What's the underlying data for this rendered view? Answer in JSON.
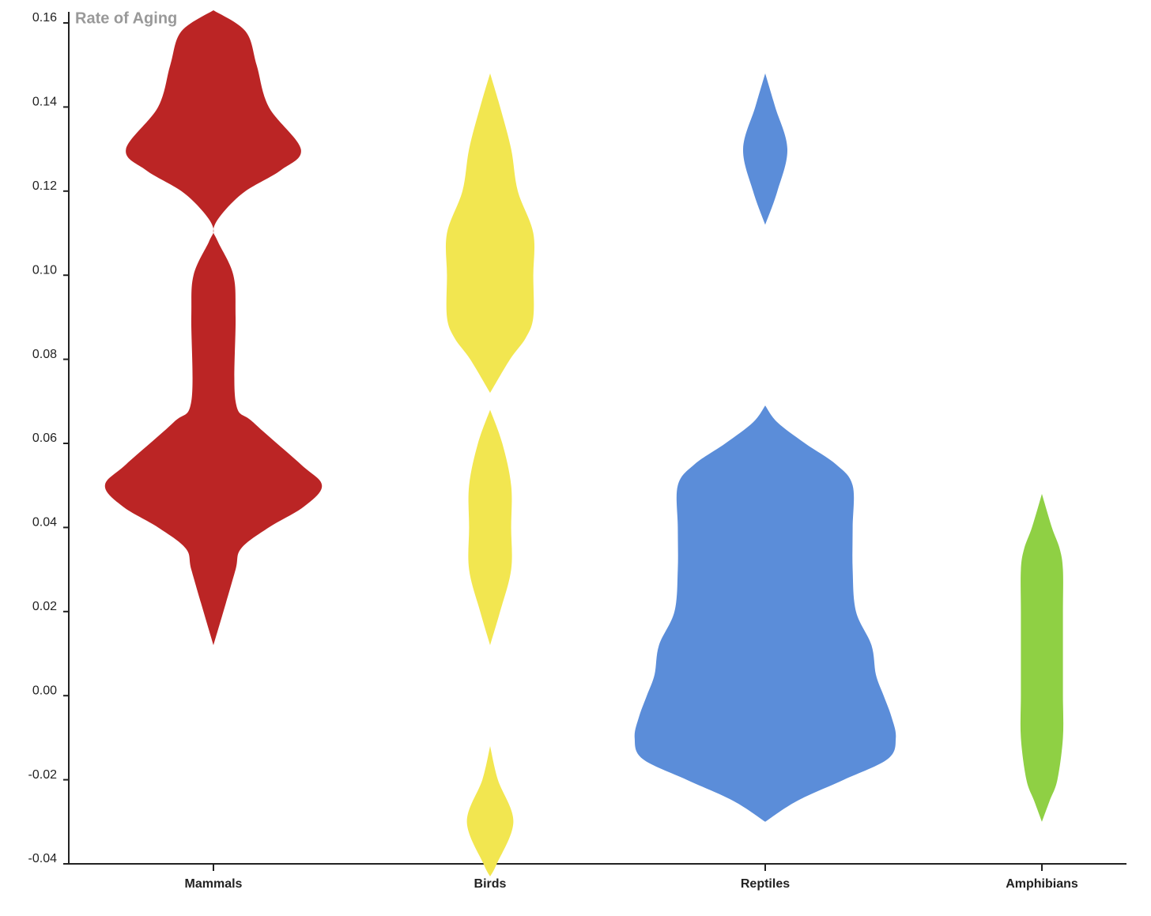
{
  "chart_data": {
    "type": "violin",
    "title": "Rate of Aging",
    "categories": [
      "Mammals",
      "Birds",
      "Reptiles",
      "Amphibians"
    ],
    "ylim": [
      -0.04,
      0.16
    ],
    "yticks": [
      -0.04,
      -0.02,
      {
        "value": 0,
        "label": "0.00"
      },
      0.02,
      0.04,
      0.06,
      0.08,
      {
        "value": 0.1,
        "label": "0.10"
      },
      0.12,
      0.14,
      0.16
    ],
    "series": [
      {
        "color": "#bb2525",
        "values": [
          0.012,
          0.02,
          0.03,
          0.035,
          0.04,
          0.045,
          0.05,
          0.055,
          0.065,
          0.07,
          0.09,
          0.1,
          0.108,
          0.111,
          0.115,
          0.12,
          0.125,
          0.13,
          0.14,
          0.15,
          0.158,
          0.163
        ],
        "density": [
          0,
          0.09,
          0.2,
          0.25,
          0.5,
          0.82,
          0.98,
          0.79,
          0.36,
          0.2,
          0.2,
          0.18,
          0.04,
          0,
          0.09,
          0.29,
          0.61,
          0.79,
          0.5,
          0.39,
          0.29,
          0
        ]
      },
      {
        "color": "#f2e650",
        "values": [
          -0.043,
          -0.04,
          -0.03,
          -0.02,
          -0.012,
          null,
          0.012,
          0.02,
          0.03,
          0.04,
          0.05,
          0.06,
          0.068,
          null,
          0.072,
          0.08,
          0.085,
          0.09,
          0.1,
          0.11,
          0.12,
          0.13,
          0.14,
          0.148
        ],
        "density": [
          0,
          0.06,
          0.21,
          0.07,
          0,
          null,
          0,
          0.09,
          0.19,
          0.19,
          0.19,
          0.11,
          0,
          null,
          0,
          0.18,
          0.32,
          0.39,
          0.39,
          0.39,
          0.25,
          0.19,
          0.09,
          0
        ]
      },
      {
        "color": "#5b8dd9",
        "values": [
          -0.03,
          -0.025,
          -0.02,
          -0.015,
          -0.01,
          -0.005,
          0,
          0.005,
          0.012,
          0.02,
          0.03,
          0.04,
          0.05,
          0.055,
          0.06,
          0.065,
          0.069,
          null,
          0.112,
          0.12,
          0.13,
          0.14,
          0.148
        ],
        "density": [
          0,
          0.29,
          0.71,
          1.11,
          1.18,
          1.14,
          1.07,
          1,
          0.96,
          0.82,
          0.79,
          0.79,
          0.79,
          0.64,
          0.36,
          0.11,
          0,
          null,
          0,
          0.11,
          0.2,
          0.09,
          0
        ]
      },
      {
        "color": "#8fd044",
        "values": [
          -0.03,
          -0.025,
          -0.02,
          -0.01,
          0,
          0.01,
          0.02,
          0.03,
          0.035,
          0.04,
          0.048
        ],
        "density": [
          0,
          0.07,
          0.14,
          0.19,
          0.19,
          0.19,
          0.19,
          0.19,
          0.16,
          0.09,
          0
        ]
      }
    ]
  }
}
